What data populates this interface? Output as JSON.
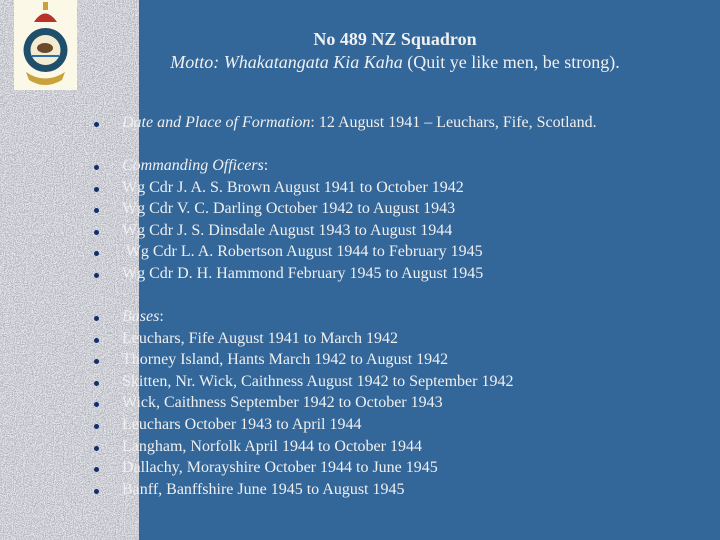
{
  "slide": {
    "title": "No 489 NZ Squadron",
    "motto_label": "Motto:",
    "motto_maori": "Whakatangata Kia Kaha",
    "motto_translation": "(Quit ye like men, be strong).",
    "formation": {
      "label": "Date and Place of Formation",
      "value": ": 12 August 1941 – Leuchars, Fife, Scotland."
    },
    "officers_heading": "Commanding Officers",
    "officers": [
      "Wg Cdr J. A. S. Brown August 1941 to October 1942",
      "Wg Cdr V. C. Darling October 1942 to August 1943",
      "Wg Cdr J. S. Dinsdale August 1943 to August 1944",
      " Wg Cdr L. A. Robertson August 1944 to February 1945",
      "Wg Cdr D. H. Hammond February 1945 to August 1945"
    ],
    "bases_heading": "Bases",
    "bases": [
      "Leuchars, Fife August 1941 to March 1942",
      "Thorney Island, Hants March 1942 to August 1942",
      "Skitten, Nr. Wick, Caithness August 1942 to September 1942",
      "Wick, Caithness September 1942 to October 1943",
      "Leuchars October 1943 to April 1944",
      "Langham, Norfolk April 1944 to October 1944",
      "Dallachy, Morayshire October 1944 to June 1945",
      "Banff, Banffshire June 1945 to August 1945"
    ],
    "colon": ":"
  },
  "colors": {
    "background": "#336699",
    "text": "#f0f0f0",
    "bullet": "#10306a"
  }
}
